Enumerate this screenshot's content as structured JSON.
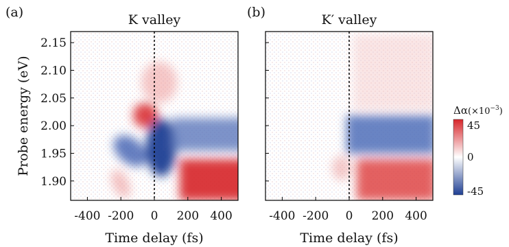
{
  "chart_data": [
    {
      "type": "heatmap",
      "panel_label": "(a)",
      "title": "K valley",
      "xlabel": "Time delay (fs)",
      "ylabel": "Probe energy (eV)",
      "xlim": [
        -500,
        500
      ],
      "ylim": [
        1.865,
        2.17
      ],
      "xticks": [
        "-400",
        "-200",
        "0",
        "200",
        "400"
      ],
      "xtick_values": [
        -400,
        -200,
        0,
        200,
        400
      ],
      "yticks": [
        "1.90",
        "1.95",
        "2.00",
        "2.05",
        "2.10",
        "2.15"
      ],
      "ytick_values": [
        1.9,
        1.95,
        2.0,
        2.05,
        2.1,
        2.15
      ],
      "zero_line": "dashed vertical line at 0 fs",
      "features": [
        {
          "region": "positive",
          "x_range": [
            -140,
            60
          ],
          "y_range": [
            1.985,
            2.08
          ],
          "peak": 40
        },
        {
          "region": "negative",
          "x_range": [
            -80,
            120
          ],
          "y_range": [
            1.885,
            1.995
          ],
          "peak": -45
        },
        {
          "region": "negative",
          "x_range": [
            120,
            500
          ],
          "y_range": [
            1.955,
            2.015
          ],
          "peak": -25
        },
        {
          "region": "positive",
          "x_range": [
            150,
            500
          ],
          "y_range": [
            1.87,
            1.94
          ],
          "peak": 40
        }
      ]
    },
    {
      "type": "heatmap",
      "panel_label": "(b)",
      "title": "K′ valley",
      "xlabel": "Time delay (fs)",
      "ylabel": "",
      "xlim": [
        -500,
        500
      ],
      "ylim": [
        1.865,
        2.17
      ],
      "xticks": [
        "-400",
        "-200",
        "0",
        "200",
        "400"
      ],
      "xtick_values": [
        -400,
        -200,
        0,
        200,
        400
      ],
      "yticks": [],
      "zero_line": "dashed vertical line at 0 fs",
      "features": [
        {
          "region": "negative",
          "x_range": [
            0,
            500
          ],
          "y_range": [
            1.94,
            2.02
          ],
          "peak": -30
        },
        {
          "region": "positive",
          "x_range": [
            60,
            500
          ],
          "y_range": [
            1.87,
            1.935
          ],
          "peak": 38
        }
      ]
    }
  ],
  "colorbar": {
    "label": "Δα (×10⁻³)",
    "label_main": "Δα",
    "label_scale": "(×10",
    "label_exp": "−3",
    "label_close": ")",
    "max_label": "45",
    "mid_label": "0",
    "min_label": "-45",
    "range": [
      -45,
      45
    ],
    "colors": {
      "positive": "#d7262b",
      "zero": "#ffffff",
      "negative": "#1f3f93"
    }
  }
}
